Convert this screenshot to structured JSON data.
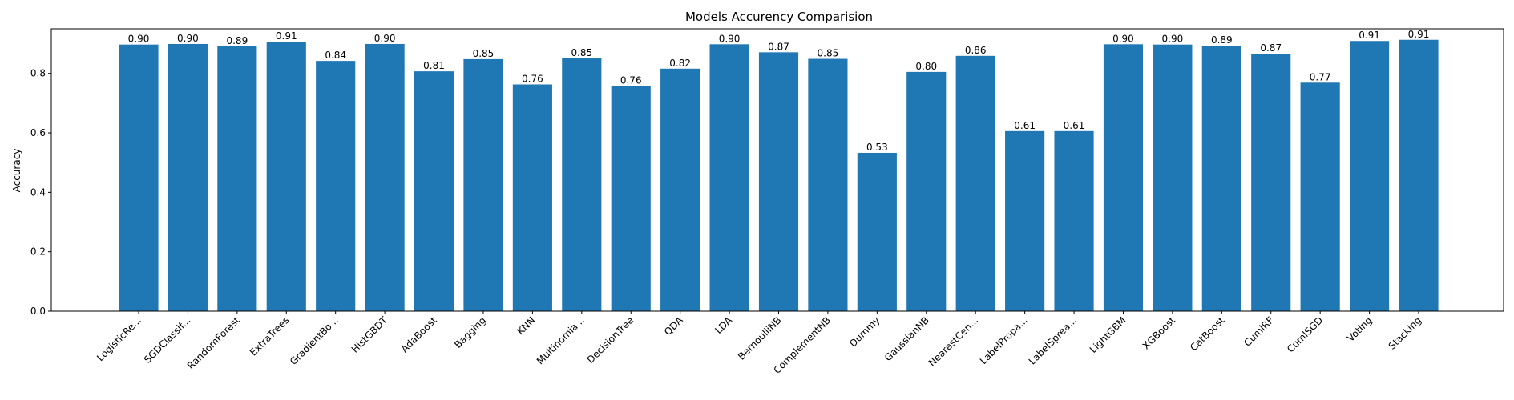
{
  "chart_data": {
    "type": "bar",
    "title": "Models Accurency Comparision",
    "xlabel": "",
    "ylabel": "Accuracy",
    "ylim": [
      0,
      0.95
    ],
    "yticks": [
      "0.0",
      "0.2",
      "0.4",
      "0.6",
      "0.8"
    ],
    "bar_color": "#1f77b4",
    "grid": false,
    "categories": [
      "LogisticRe...",
      "SGDClassif...",
      "RandomForest",
      "ExtraTrees",
      "GradientBo...",
      "HistGBDT",
      "AdaBoost",
      "Bagging",
      "KNN",
      "Multinomia...",
      "DecisionTree",
      "QDA",
      "LDA",
      "BernoulliNB",
      "ComplementNB",
      "Dummy",
      "GaussianNB",
      "NearestCen...",
      "LabelPropa...",
      "LabelSprea...",
      "LightGBM",
      "XGBoost",
      "CatBoost",
      "CumlRF",
      "CumlSGD",
      "Voting",
      "Stacking"
    ],
    "values": [
      0.897,
      0.899,
      0.891,
      0.907,
      0.842,
      0.899,
      0.807,
      0.848,
      0.763,
      0.851,
      0.757,
      0.816,
      0.898,
      0.871,
      0.849,
      0.533,
      0.805,
      0.859,
      0.606,
      0.606,
      0.898,
      0.897,
      0.893,
      0.866,
      0.769,
      0.909,
      0.913
    ],
    "value_labels": [
      "0.90",
      "0.90",
      "0.89",
      "0.91",
      "0.84",
      "0.90",
      "0.81",
      "0.85",
      "0.76",
      "0.85",
      "0.76",
      "0.82",
      "0.90",
      "0.87",
      "0.85",
      "0.53",
      "0.80",
      "0.86",
      "0.61",
      "0.61",
      "0.90",
      "0.90",
      "0.89",
      "0.87",
      "0.77",
      "0.91",
      "0.91"
    ]
  }
}
